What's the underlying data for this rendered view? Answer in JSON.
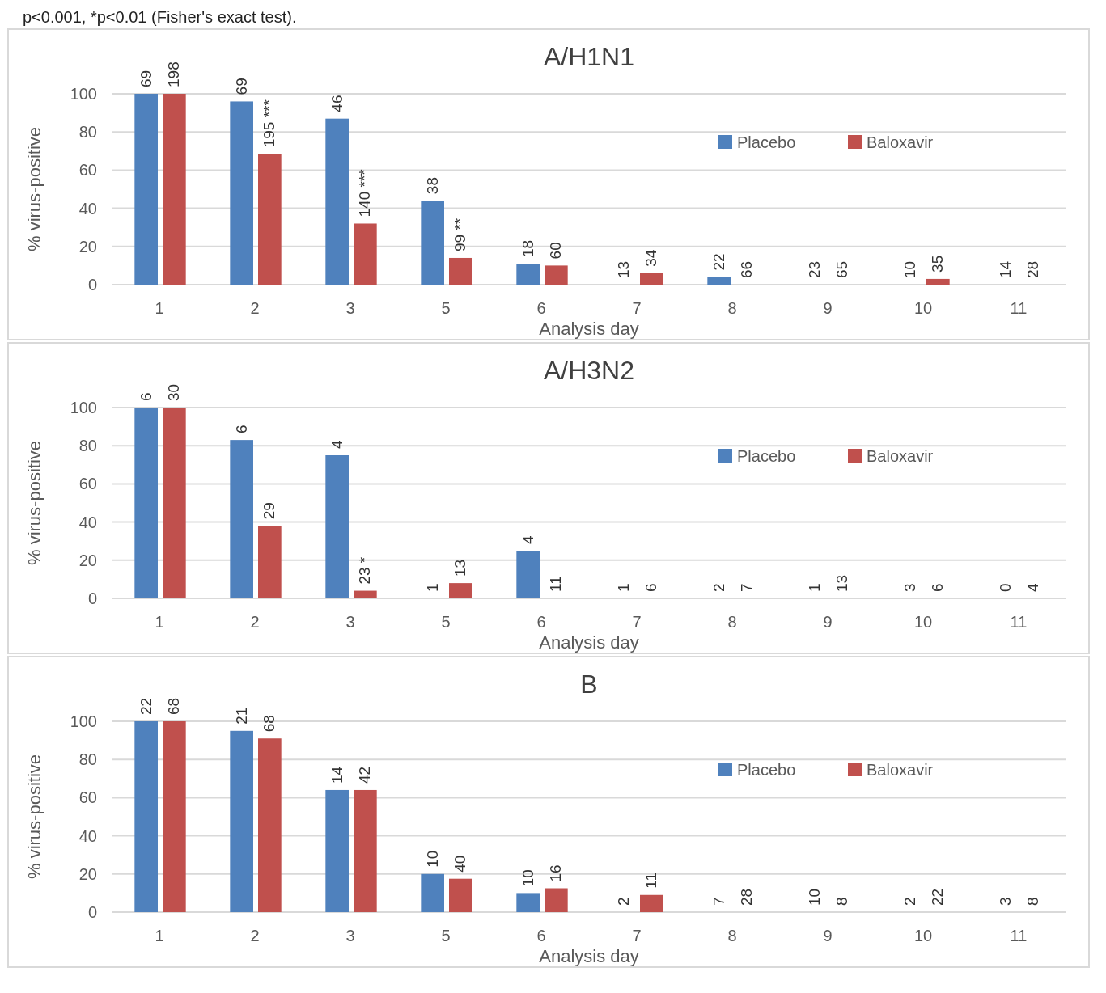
{
  "chart_data": [
    {
      "type": "bar",
      "title": "A/H1N1",
      "xlabel": "Analysis day",
      "ylabel": "% virus-positive",
      "categories": [
        "1",
        "2",
        "3",
        "5",
        "6",
        "7",
        "8",
        "9",
        "10",
        "11"
      ],
      "ylim": [
        0,
        100
      ],
      "yticks": [
        0,
        20,
        40,
        60,
        80,
        100
      ],
      "grid": "y",
      "legend": "top right",
      "annotations": [
        "p<0.001, *p<0.01 (Fisher's exact test).",
        {
          "text": "69",
          "x": "1",
          "y": 100
        },
        {
          "text": "198",
          "x": "1",
          "y": 100
        },
        {
          "text": "69",
          "x": "2",
          "y": 96
        },
        {
          "text": "195 ***",
          "x": "2",
          "y": 68.5
        },
        {
          "text": "46",
          "x": "3",
          "y": 87
        },
        {
          "text": "140 ***",
          "x": "3",
          "y": 32
        },
        {
          "text": "38",
          "x": "5",
          "y": 44
        },
        {
          "text": "99 **",
          "x": "5",
          "y": 14
        },
        {
          "text": "18",
          "x": "6",
          "y": 11
        },
        {
          "text": "60",
          "x": "6",
          "y": 10
        },
        {
          "text": "13",
          "x": "7",
          "y": 0
        },
        {
          "text": "34",
          "x": "7",
          "y": 6
        },
        {
          "text": "22",
          "x": "8",
          "y": 4
        },
        {
          "text": "66",
          "x": "8",
          "y": 0
        },
        {
          "text": "23",
          "x": "9",
          "y": 0
        },
        {
          "text": "65",
          "x": "9",
          "y": 0
        },
        {
          "text": "10",
          "x": "10",
          "y": 0
        },
        {
          "text": "35",
          "x": "10",
          "y": 3
        },
        {
          "text": "14",
          "x": "11",
          "y": 0
        },
        {
          "text": "28",
          "x": "11",
          "y": 0
        }
      ],
      "series": [
        {
          "name": "Placebo",
          "color": "#4f81bd",
          "values": [
            100,
            96,
            87,
            44,
            11,
            0,
            4,
            0,
            0,
            0
          ]
        },
        {
          "name": "Baloxavir",
          "color": "#c0504d",
          "values": [
            100,
            68.5,
            32,
            14,
            10,
            6,
            0,
            0,
            3,
            0
          ]
        }
      ]
    },
    {
      "type": "bar",
      "title": "A/H3N2",
      "xlabel": "Analysis day",
      "ylabel": "% virus-positive",
      "categories": [
        "1",
        "2",
        "3",
        "5",
        "6",
        "7",
        "8",
        "9",
        "10",
        "11"
      ],
      "ylim": [
        0,
        100
      ],
      "yticks": [
        0,
        20,
        40,
        60,
        80,
        100
      ],
      "grid": "y",
      "legend": "top right",
      "annotations": [
        {
          "text": "6",
          "x": "1",
          "y": 100
        },
        {
          "text": "30",
          "x": "1",
          "y": 100
        },
        {
          "text": "6",
          "x": "2",
          "y": 83
        },
        {
          "text": "29",
          "x": "2",
          "y": 38
        },
        {
          "text": "4",
          "x": "3",
          "y": 75
        },
        {
          "text": "23 *",
          "x": "3",
          "y": 4
        },
        {
          "text": "1",
          "x": "5",
          "y": 0
        },
        {
          "text": "13",
          "x": "5",
          "y": 8
        },
        {
          "text": "4",
          "x": "6",
          "y": 25
        },
        {
          "text": "11",
          "x": "6",
          "y": 0
        },
        {
          "text": "1",
          "x": "7",
          "y": 0
        },
        {
          "text": "6",
          "x": "7",
          "y": 0
        },
        {
          "text": "2",
          "x": "8",
          "y": 0
        },
        {
          "text": "7",
          "x": "8",
          "y": 0
        },
        {
          "text": "1",
          "x": "9",
          "y": 0
        },
        {
          "text": "13",
          "x": "9",
          "y": 0
        },
        {
          "text": "3",
          "x": "10",
          "y": 0
        },
        {
          "text": "6",
          "x": "10",
          "y": 0
        },
        {
          "text": "0",
          "x": "11",
          "y": 0
        },
        {
          "text": "4",
          "x": "11",
          "y": 0
        }
      ],
      "series": [
        {
          "name": "Placebo",
          "color": "#4f81bd",
          "values": [
            100,
            83,
            75,
            0,
            25,
            0,
            0,
            0,
            0,
            0
          ]
        },
        {
          "name": "Baloxavir",
          "color": "#c0504d",
          "values": [
            100,
            38,
            4,
            8,
            0,
            0,
            0,
            0,
            0,
            0
          ]
        }
      ]
    },
    {
      "type": "bar",
      "title": "B",
      "xlabel": "Analysis day",
      "ylabel": "% virus-positive",
      "categories": [
        "1",
        "2",
        "3",
        "5",
        "6",
        "7",
        "8",
        "9",
        "10",
        "11"
      ],
      "ylim": [
        0,
        100
      ],
      "yticks": [
        0,
        20,
        40,
        60,
        80,
        100
      ],
      "grid": "y",
      "legend": "top right",
      "annotations": [
        {
          "text": "22",
          "x": "1",
          "y": 100
        },
        {
          "text": "68",
          "x": "1",
          "y": 100
        },
        {
          "text": "21",
          "x": "2",
          "y": 95
        },
        {
          "text": "68",
          "x": "2",
          "y": 91
        },
        {
          "text": "14",
          "x": "3",
          "y": 64
        },
        {
          "text": "42",
          "x": "3",
          "y": 64
        },
        {
          "text": "10",
          "x": "5",
          "y": 20
        },
        {
          "text": "40",
          "x": "5",
          "y": 17.5
        },
        {
          "text": "10",
          "x": "6",
          "y": 10
        },
        {
          "text": "16",
          "x": "6",
          "y": 12.5
        },
        {
          "text": "2",
          "x": "7",
          "y": 0
        },
        {
          "text": "11",
          "x": "7",
          "y": 9
        },
        {
          "text": "7",
          "x": "8",
          "y": 0
        },
        {
          "text": "28",
          "x": "8",
          "y": 0
        },
        {
          "text": "10",
          "x": "9",
          "y": 0
        },
        {
          "text": "8",
          "x": "9",
          "y": 0
        },
        {
          "text": "2",
          "x": "10",
          "y": 0
        },
        {
          "text": "22",
          "x": "10",
          "y": 0
        },
        {
          "text": "3",
          "x": "11",
          "y": 0
        },
        {
          "text": "8",
          "x": "11",
          "y": 0
        }
      ],
      "series": [
        {
          "name": "Placebo",
          "color": "#4f81bd",
          "values": [
            100,
            95,
            64,
            20,
            10,
            0,
            0,
            0,
            0,
            0
          ]
        },
        {
          "name": "Baloxavir",
          "color": "#c0504d",
          "values": [
            100,
            91,
            64,
            17.5,
            12.5,
            9,
            0,
            0,
            0,
            0
          ]
        }
      ]
    }
  ]
}
